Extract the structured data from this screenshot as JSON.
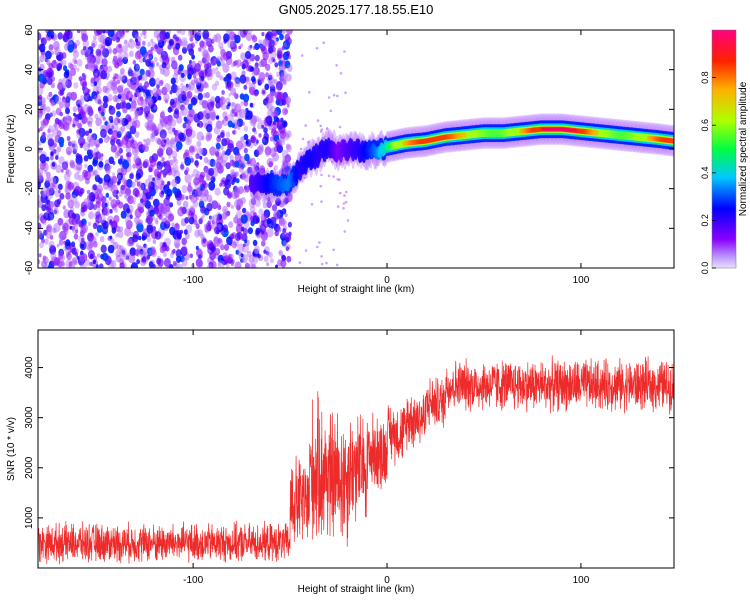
{
  "title": "GN05.2025.177.18.55.E10",
  "colors": {
    "snr_line": "#ee2b2b",
    "axis": "#000000"
  },
  "chart_data": [
    {
      "type": "heatmap",
      "xlabel": "Height of straight line (km)",
      "ylabel": "Frequency (Hz)",
      "xlim": [
        -180,
        148
      ],
      "ylim": [
        -60,
        60
      ],
      "x_ticks": [
        -100,
        0,
        100
      ],
      "y_ticks": [
        -60,
        -40,
        -20,
        0,
        20,
        40,
        60
      ],
      "grid": false,
      "colorbar": {
        "label": "Normalized spectral amplitude",
        "range": [
          0,
          1
        ],
        "ticks": [
          0.0,
          0.2,
          0.4,
          0.6,
          0.8
        ],
        "colormap": [
          "#cfc0ff",
          "#8a00ff",
          "#0000ff",
          "#00c8ff",
          "#00ff60",
          "#c8ff00",
          "#ffa000",
          "#ff2000",
          "#ff0070"
        ]
      },
      "noise_region": {
        "x_range": [
          -180,
          -50
        ],
        "level_range": [
          0.05,
          0.3
        ]
      },
      "trace": {
        "x": [
          -70,
          -60,
          -50,
          -45,
          -40,
          -35,
          -30,
          -25,
          -20,
          -15,
          -10,
          -5,
          0,
          5,
          10,
          20,
          30,
          40,
          50,
          60,
          70,
          80,
          90,
          100,
          110,
          120,
          130,
          140,
          148
        ],
        "freq": [
          -18,
          -18,
          -17,
          -10,
          -5,
          -3,
          2,
          -2,
          0,
          -1,
          -1,
          -1,
          1,
          2,
          3,
          4,
          6,
          7,
          8,
          8,
          9,
          10,
          10,
          9,
          8,
          7,
          6,
          5,
          4
        ],
        "amplitude": [
          0.2,
          0.25,
          0.3,
          0.2,
          0.25,
          0.25,
          0.3,
          0.2,
          0.3,
          0.35,
          0.4,
          0.45,
          0.55,
          0.65,
          0.7,
          0.8,
          0.9,
          0.95,
          0.95,
          0.85,
          0.85,
          0.9,
          0.95,
          0.95,
          0.9,
          0.9,
          0.95,
          0.95,
          0.9
        ]
      }
    },
    {
      "type": "line",
      "xlabel": "Height of straight line (km)",
      "ylabel": "SNR (10 * v/v)",
      "xlim": [
        -180,
        148
      ],
      "ylim": [
        0,
        4750
      ],
      "x_ticks": [
        -100,
        0,
        100
      ],
      "y_ticks": [
        1000,
        2000,
        3000,
        4000
      ],
      "grid": false,
      "series": [
        {
          "segments": [
            {
              "x_range": [
                -180,
                -50
              ],
              "center": 500,
              "spread": 450
            },
            {
              "x_range": [
                -50,
                -40
              ],
              "center": 1300,
              "spread": 1100
            },
            {
              "x_range": [
                -40,
                -30
              ],
              "center": 1900,
              "spread": 1700
            },
            {
              "x_range": [
                -30,
                -20
              ],
              "center": 1800,
              "spread": 1600
            },
            {
              "x_range": [
                -20,
                -10
              ],
              "center": 2000,
              "spread": 1300
            },
            {
              "x_range": [
                -10,
                0
              ],
              "center": 2300,
              "spread": 900
            },
            {
              "x_range": [
                0,
                10
              ],
              "center": 2700,
              "spread": 700
            },
            {
              "x_range": [
                10,
                20
              ],
              "center": 3000,
              "spread": 700
            },
            {
              "x_range": [
                20,
                30
              ],
              "center": 3300,
              "spread": 600
            },
            {
              "x_range": [
                30,
                148
              ],
              "center": 3650,
              "spread": 600
            }
          ]
        }
      ]
    }
  ]
}
